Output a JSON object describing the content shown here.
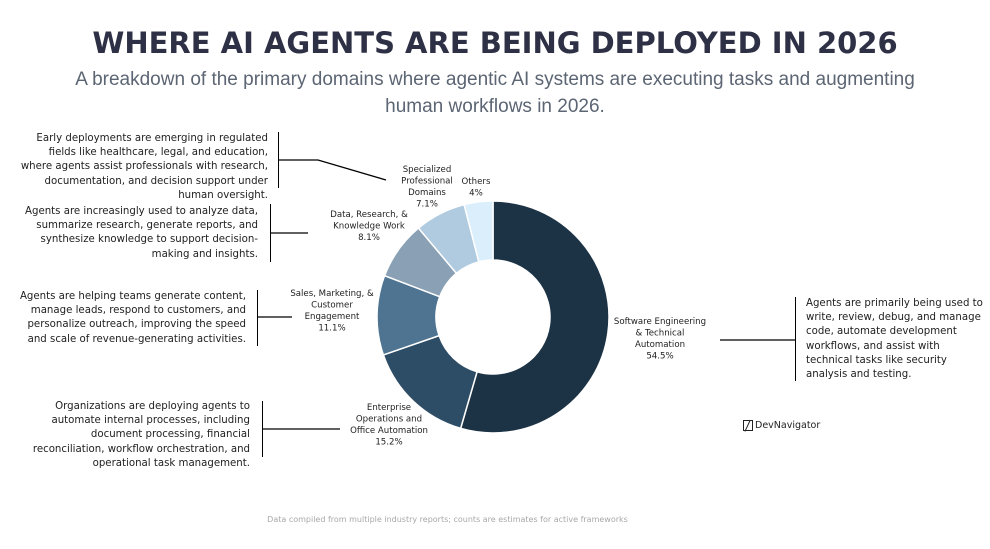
{
  "title": "WHERE AI AGENTS ARE BEING DEPLOYED IN 2026",
  "subtitle": "A breakdown of the primary domains where agentic AI systems are executing tasks and augmenting human workflows in 2026.",
  "notes": {
    "regulated": "Early deployments are emerging in regulated fields like healthcare, legal, and education, where agents assist professionals with research, documentation, and decision support under human oversight.",
    "research": "Agents are increasingly used to analyze data, summarize research, generate reports, and synthesize knowledge to support decision-making and insights.",
    "sales": "Agents are helping teams generate content, manage leads, respond to customers, and personalize outreach, improving the speed and scale of revenue-generating activities.",
    "enterprise": "Organizations are deploying agents to automate internal processes, including document processing, financial reconciliation, workflow orchestration, and operational task management.",
    "software": "Agents are primarily being used to write, review, debug, and manage code, automate development workflows, and assist with technical tasks like security analysis and testing."
  },
  "brand": "DevNavigator",
  "footer": "Data compiled from multiple industry reports; counts are estimates for active frameworks",
  "chart_data": {
    "type": "pie",
    "variant": "donut",
    "categories": [
      "Software Engineering & Technical Automation",
      "Enterprise Operations and Office Automation",
      "Sales, Marketing, & Customer Engagement",
      "Data, Research, & Knowledge Work",
      "Specialized Professional Domains",
      "Others"
    ],
    "values": [
      54.5,
      15.2,
      11.1,
      8.1,
      7.1,
      4
    ],
    "value_labels": [
      "54.5%",
      "15.2%",
      "11.1%",
      "8.1%",
      "7.1%",
      "4%"
    ],
    "colors": [
      "#1c3245",
      "#2d4c66",
      "#4e7492",
      "#8aa1b5",
      "#b0cbe0",
      "#daeefb"
    ],
    "title": "WHERE AI AGENTS ARE BEING DEPLOYED IN 2026",
    "legend": "none"
  }
}
